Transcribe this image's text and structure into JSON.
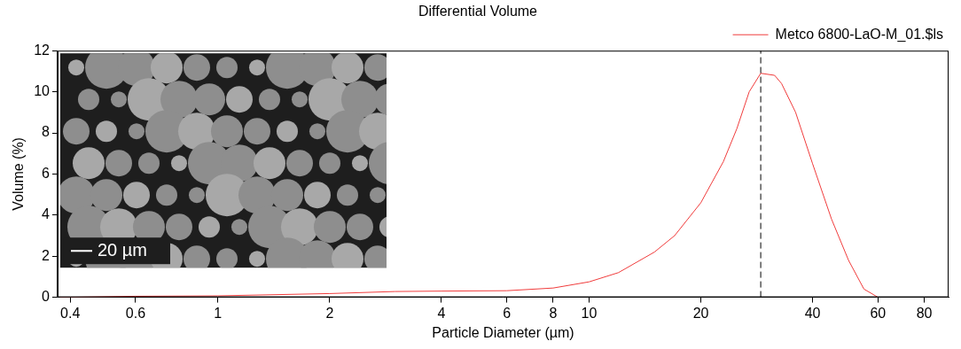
{
  "chart_data": {
    "type": "line",
    "title": "Differential Volume",
    "x_label": "Particle Diameter (µm)",
    "y_label": "Volume (%)",
    "log": "x",
    "x": [
      0.375,
      0.4,
      0.6,
      1,
      2,
      3,
      4,
      6,
      8,
      10,
      12,
      15,
      17,
      20,
      23,
      25,
      27,
      29,
      31.6,
      33,
      36,
      40,
      45,
      50,
      55,
      60
    ],
    "series": [
      {
        "name": "Metco 6800-LaO-M_01.$ls",
        "color": "#f03c3c",
        "values": [
          0,
          0,
          0.05,
          0.07,
          0.18,
          0.28,
          0.3,
          0.32,
          0.45,
          0.75,
          1.2,
          2.2,
          3.0,
          4.6,
          6.6,
          8.2,
          10.0,
          10.9,
          10.8,
          10.4,
          9.0,
          6.5,
          3.8,
          1.8,
          0.4,
          0
        ]
      }
    ],
    "xlim": [
      0.37,
      93
    ],
    "xticks": [
      0.4,
      0.6,
      1,
      2,
      4,
      6,
      8,
      10,
      20,
      40,
      60,
      80
    ],
    "ylim": [
      0,
      12
    ],
    "yticks": [
      0,
      2,
      4,
      6,
      8,
      10,
      12
    ],
    "grid": false,
    "legend": "top-right",
    "annotations": [
      {
        "type": "vline",
        "x": 29,
        "line_style": "dashed"
      },
      {
        "type": "inset",
        "text": "20 µm"
      }
    ]
  }
}
